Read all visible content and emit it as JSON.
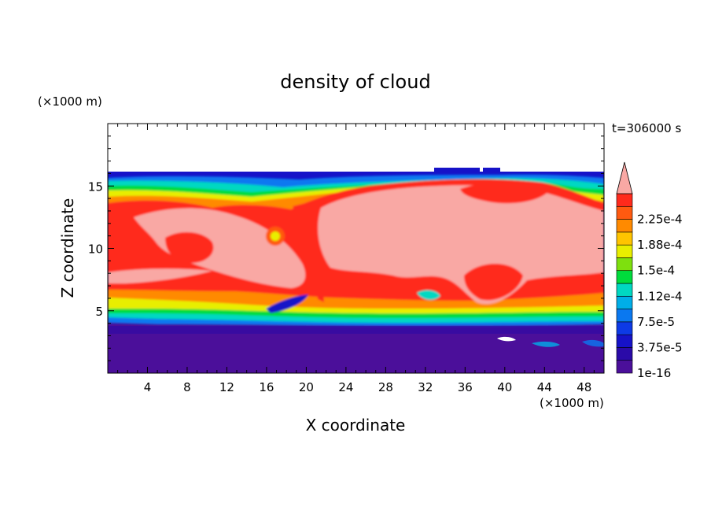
{
  "chart_data": {
    "type": "heatmap",
    "title": "density of cloud",
    "time_label": "t=306000 s",
    "xlabel": "X coordinate",
    "ylabel": "Z coordinate",
    "x_unit": "(×1000 m)",
    "y_unit": "(×1000 m)",
    "xlim": [
      0,
      50
    ],
    "ylim": [
      0,
      20
    ],
    "x_ticks": [
      4,
      8,
      12,
      16,
      20,
      24,
      28,
      32,
      36,
      40,
      44,
      48
    ],
    "y_ticks": [
      5,
      10,
      15
    ],
    "domain_top_z": 16,
    "colorbar": {
      "levels": [
        {
          "value": "1e-16",
          "color": "#4b0f9a"
        },
        {
          "value": "1.875e-5",
          "color": "#2a0aa8"
        },
        {
          "value": "3.75e-5",
          "color": "#1612c8"
        },
        {
          "value": "5.625e-5",
          "color": "#0d3ae6"
        },
        {
          "value": "7.5e-5",
          "color": "#0a78f0"
        },
        {
          "value": "9.375e-5",
          "color": "#00aee8"
        },
        {
          "value": "1.12e-4",
          "color": "#00d8c2"
        },
        {
          "value": "1.31e-4",
          "color": "#00dc3c"
        },
        {
          "value": "1.5e-4",
          "color": "#7ee00e"
        },
        {
          "value": "1.69e-4",
          "color": "#e8ee00"
        },
        {
          "value": "1.88e-4",
          "color": "#ffc400"
        },
        {
          "value": "2.06e-4",
          "color": "#ff8a00"
        },
        {
          "value": "2.25e-4",
          "color": "#ff5a10"
        },
        {
          "value": "2.44e-4",
          "color": "#ff2a1c"
        },
        {
          "value": ">2.44e-4",
          "color": "#f9a8a4"
        }
      ],
      "tick_labels": [
        "1e-16",
        "3.75e-5",
        "7.5e-5",
        "1.12e-4",
        "1.5e-4",
        "1.88e-4",
        "2.25e-4"
      ]
    }
  }
}
